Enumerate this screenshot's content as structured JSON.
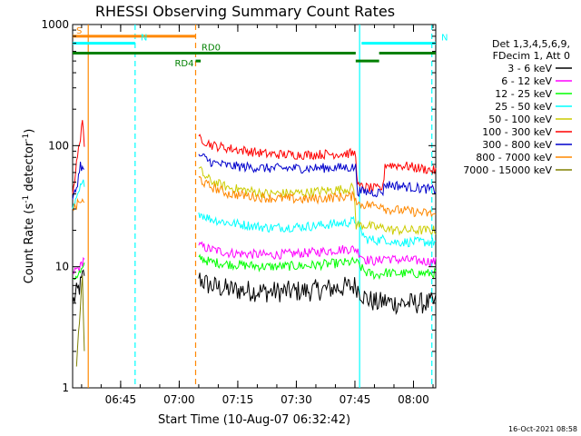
{
  "chart_data": {
    "type": "line",
    "title": "RHESSI Observing Summary Count Rates",
    "xlabel": "Start Time (10-Aug-07 06:32:42)",
    "ylabel_main": "Count Rate (s",
    "ylabel_sup1": "-1",
    "ylabel_mid": " detector",
    "ylabel_sup2": "-1",
    "ylabel_end": ")",
    "yscale": "log",
    "ylim": [
      1,
      1000
    ],
    "xlim_minutes": [
      0,
      93
    ],
    "x_ticks": [
      {
        "label": "06:45",
        "minutes": 12.3
      },
      {
        "label": "07:00",
        "minutes": 27.3
      },
      {
        "label": "07:15",
        "minutes": 42.3
      },
      {
        "label": "07:30",
        "minutes": 57.3
      },
      {
        "label": "07:45",
        "minutes": 72.3
      },
      {
        "label": "08:00",
        "minutes": 87.3
      }
    ],
    "y_ticks": [
      {
        "label": "1",
        "value": 1
      },
      {
        "label": "10",
        "value": 10
      },
      {
        "label": "100",
        "value": 100
      },
      {
        "label": "1000",
        "value": 1000
      }
    ],
    "legend_header": [
      "Det 1,3,4,5,6,9,",
      "FDecim 1, Att 0"
    ],
    "series": [
      {
        "name": "3 - 6 keV",
        "color": "#000000",
        "points": [
          [
            0,
            5
          ],
          [
            1,
            6
          ],
          [
            2,
            7
          ],
          [
            2.5,
            8
          ],
          [
            3,
            9
          ],
          [
            32.3,
            8
          ],
          [
            35,
            7
          ],
          [
            40,
            6.5
          ],
          [
            50,
            6.2
          ],
          [
            60,
            6.3
          ],
          [
            70,
            6.8
          ],
          [
            72.5,
            7
          ],
          [
            75,
            5.5
          ],
          [
            78,
            5
          ],
          [
            80,
            5.2
          ],
          [
            82,
            5
          ],
          [
            93,
            5
          ]
        ]
      },
      {
        "name": "6 - 12 keV",
        "color": "#ff00ff",
        "points": [
          [
            0,
            9
          ],
          [
            2,
            10
          ],
          [
            3,
            12
          ],
          [
            32.3,
            15
          ],
          [
            35,
            14
          ],
          [
            40,
            13
          ],
          [
            50,
            12.5
          ],
          [
            60,
            13
          ],
          [
            70,
            14
          ],
          [
            72.5,
            14
          ],
          [
            75,
            11.5
          ],
          [
            78,
            11
          ],
          [
            80,
            12
          ],
          [
            82,
            11.5
          ],
          [
            93,
            11
          ]
        ]
      },
      {
        "name": "12 - 25 keV",
        "color": "#00ff00",
        "points": [
          [
            0,
            8
          ],
          [
            2,
            9
          ],
          [
            3,
            10
          ],
          [
            32.3,
            12
          ],
          [
            35,
            11
          ],
          [
            40,
            10.5
          ],
          [
            50,
            10
          ],
          [
            60,
            10.2
          ],
          [
            70,
            10.8
          ],
          [
            72.5,
            11
          ],
          [
            75,
            9
          ],
          [
            78,
            8.5
          ],
          [
            80,
            9
          ],
          [
            82,
            8.8
          ],
          [
            93,
            8.8
          ]
        ]
      },
      {
        "name": "25 - 50 keV",
        "color": "#00ffff",
        "points": [
          [
            0,
            30
          ],
          [
            1,
            35
          ],
          [
            2,
            45
          ],
          [
            3,
            50
          ],
          [
            32.3,
            28
          ],
          [
            35,
            25
          ],
          [
            40,
            23
          ],
          [
            50,
            21
          ],
          [
            60,
            21.5
          ],
          [
            70,
            23
          ],
          [
            72.5,
            24
          ],
          [
            75,
            17
          ],
          [
            78,
            16.5
          ],
          [
            80,
            17
          ],
          [
            82,
            16
          ],
          [
            93,
            16
          ]
        ]
      },
      {
        "name": "50 - 100 keV",
        "color": "#cccc00",
        "points": [
          [
            32.3,
            65
          ],
          [
            34,
            55
          ],
          [
            36,
            50
          ],
          [
            40,
            45
          ],
          [
            50,
            40
          ],
          [
            60,
            41
          ],
          [
            70,
            44
          ],
          [
            72,
            45
          ],
          [
            72.6,
            22
          ],
          [
            75,
            22
          ],
          [
            78,
            21
          ],
          [
            80,
            21
          ],
          [
            82,
            20
          ],
          [
            93,
            20
          ]
        ]
      },
      {
        "name": "100 - 300 keV",
        "color": "#ff0000",
        "points": [
          [
            0,
            40
          ],
          [
            1,
            70
          ],
          [
            2,
            120
          ],
          [
            2.5,
            170
          ],
          [
            3,
            90
          ],
          [
            32.3,
            120
          ],
          [
            34,
            108
          ],
          [
            36,
            100
          ],
          [
            40,
            95
          ],
          [
            45,
            90
          ],
          [
            50,
            85
          ],
          [
            60,
            84
          ],
          [
            70,
            86
          ],
          [
            72.5,
            86
          ],
          [
            73,
            46
          ],
          [
            78,
            44
          ],
          [
            79.5,
            45
          ],
          [
            80,
            70
          ],
          [
            85,
            68
          ],
          [
            93,
            62
          ]
        ]
      },
      {
        "name": "300 - 800 keV",
        "color": "#0000cc",
        "points": [
          [
            0,
            36
          ],
          [
            1,
            45
          ],
          [
            2,
            70
          ],
          [
            3,
            60
          ],
          [
            32.3,
            85
          ],
          [
            34,
            78
          ],
          [
            36,
            72
          ],
          [
            40,
            68
          ],
          [
            50,
            65
          ],
          [
            60,
            65
          ],
          [
            70,
            66
          ],
          [
            72.5,
            66
          ],
          [
            73,
            42
          ],
          [
            78,
            41
          ],
          [
            79.5,
            42
          ],
          [
            80,
            48
          ],
          [
            85,
            46
          ],
          [
            93,
            43
          ]
        ]
      },
      {
        "name": "800 - 7000 keV",
        "color": "#ff8800",
        "points": [
          [
            0,
            30
          ],
          [
            1,
            32
          ],
          [
            2,
            35
          ],
          [
            3,
            33
          ],
          [
            32.3,
            55
          ],
          [
            34,
            48
          ],
          [
            36,
            45
          ],
          [
            40,
            40
          ],
          [
            50,
            37
          ],
          [
            60,
            36
          ],
          [
            70,
            38
          ],
          [
            72.5,
            38
          ],
          [
            73,
            33
          ],
          [
            78,
            32
          ],
          [
            79.5,
            33
          ],
          [
            80,
            30
          ],
          [
            85,
            29
          ],
          [
            93,
            27
          ]
        ]
      },
      {
        "name": "7000 - 15000 keV",
        "color": "#808000",
        "points": [
          [
            1,
            1.5
          ],
          [
            2,
            5
          ],
          [
            2.5,
            8
          ],
          [
            3,
            2
          ]
        ]
      }
    ],
    "flags": [
      {
        "label": "S",
        "color": "#ff8800",
        "start": 0,
        "end": 31.5,
        "level": 800
      },
      {
        "label": "N",
        "color": "#00ffff",
        "start": 0,
        "end": 16,
        "level": 700
      },
      {
        "label": "N",
        "color": "#00ffff",
        "start": 74,
        "end": 93,
        "level": 700
      },
      {
        "label": "RD0",
        "color": "#008000",
        "start": 0,
        "end": 72.5,
        "level": 580
      },
      {
        "label": "RD4",
        "color": "#008000",
        "start": 31.5,
        "end": 32.8,
        "level": 500
      },
      {
        "label": "",
        "color": "#008000",
        "start": 72.5,
        "end": 78.5,
        "level": 500
      },
      {
        "label": "",
        "color": "#008000",
        "start": 78.5,
        "end": 93,
        "level": 580
      }
    ],
    "vlines": [
      {
        "minutes": 4,
        "color": "#ff8800",
        "dashed": false
      },
      {
        "minutes": 16,
        "color": "#00ffff",
        "dashed": true
      },
      {
        "minutes": 31.5,
        "color": "#ff8800",
        "dashed": true
      },
      {
        "minutes": 73.5,
        "color": "#00ffff",
        "dashed": false
      },
      {
        "minutes": 92,
        "color": "#00ffff",
        "dashed": true
      }
    ],
    "footer": "16-Oct-2021 08:58"
  }
}
